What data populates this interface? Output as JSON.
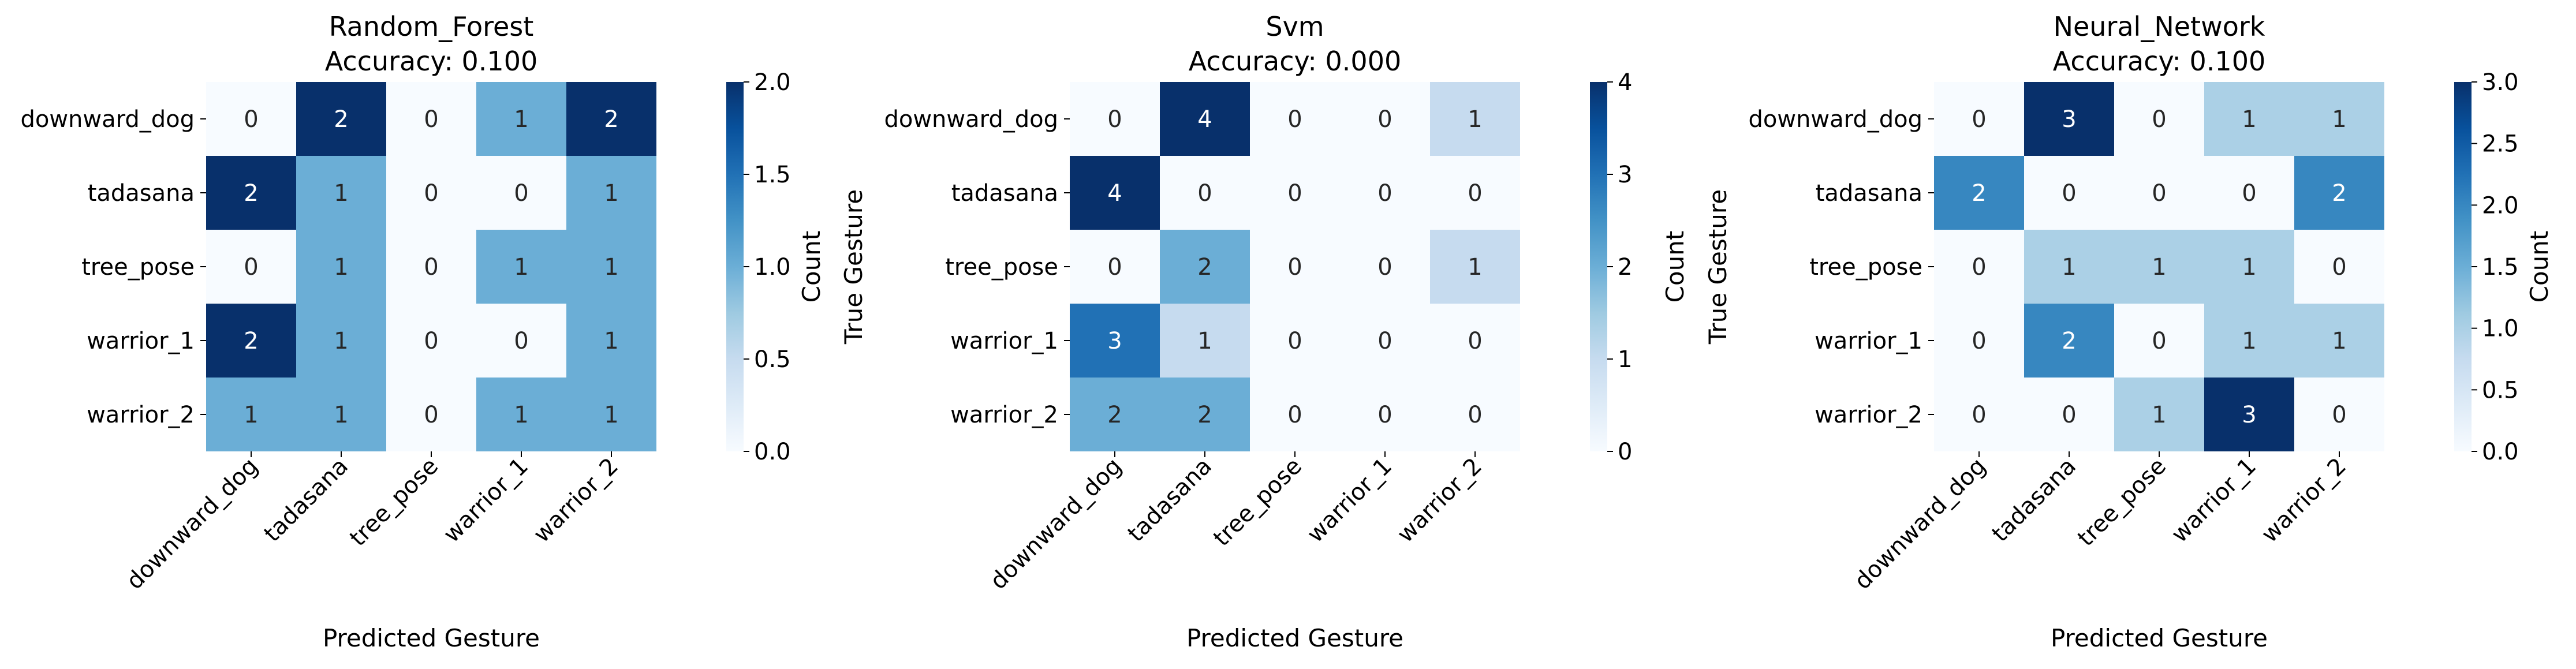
{
  "chart_data": [
    {
      "type": "heatmap",
      "title": "Random_Forest",
      "subtitle": "Accuracy: 0.100",
      "xlabel": "Predicted Gesture",
      "ylabel": "True Gesture",
      "colorbar_label": "Count",
      "rows": [
        "downward_dog",
        "tadasana",
        "tree_pose",
        "warrior_1",
        "warrior_2"
      ],
      "columns": [
        "downward_dog",
        "tadasana",
        "tree_pose",
        "warrior_1",
        "warrior_2"
      ],
      "values": [
        [
          0,
          2,
          0,
          1,
          2
        ],
        [
          2,
          1,
          0,
          0,
          1
        ],
        [
          0,
          1,
          0,
          1,
          1
        ],
        [
          2,
          1,
          0,
          0,
          1
        ],
        [
          1,
          1,
          0,
          1,
          1
        ]
      ],
      "vmin": 0,
      "vmax": 2,
      "colorbar_ticks": [
        "0.0",
        "0.5",
        "1.0",
        "1.5",
        "2.0"
      ],
      "colormap": "Blues"
    },
    {
      "type": "heatmap",
      "title": "Svm",
      "subtitle": "Accuracy: 0.000",
      "xlabel": "Predicted Gesture",
      "ylabel": "True Gesture",
      "colorbar_label": "Count",
      "rows": [
        "downward_dog",
        "tadasana",
        "tree_pose",
        "warrior_1",
        "warrior_2"
      ],
      "columns": [
        "downward_dog",
        "tadasana",
        "tree_pose",
        "warrior_1",
        "warrior_2"
      ],
      "values": [
        [
          0,
          4,
          0,
          0,
          1
        ],
        [
          4,
          0,
          0,
          0,
          0
        ],
        [
          0,
          2,
          0,
          0,
          1
        ],
        [
          3,
          1,
          0,
          0,
          0
        ],
        [
          2,
          2,
          0,
          0,
          0
        ]
      ],
      "vmin": 0,
      "vmax": 4,
      "colorbar_ticks": [
        "0",
        "1",
        "2",
        "3",
        "4"
      ],
      "colormap": "Blues"
    },
    {
      "type": "heatmap",
      "title": "Neural_Network",
      "subtitle": "Accuracy: 0.100",
      "xlabel": "Predicted Gesture",
      "ylabel": "True Gesture",
      "colorbar_label": "Count",
      "rows": [
        "downward_dog",
        "tadasana",
        "tree_pose",
        "warrior_1",
        "warrior_2"
      ],
      "columns": [
        "downward_dog",
        "tadasana",
        "tree_pose",
        "warrior_1",
        "warrior_2"
      ],
      "values": [
        [
          0,
          3,
          0,
          1,
          1
        ],
        [
          2,
          0,
          0,
          0,
          2
        ],
        [
          0,
          1,
          1,
          1,
          0
        ],
        [
          0,
          2,
          0,
          1,
          1
        ],
        [
          0,
          0,
          1,
          3,
          0
        ]
      ],
      "vmin": 0,
      "vmax": 3,
      "colorbar_ticks": [
        "0.0",
        "0.5",
        "1.0",
        "1.5",
        "2.0",
        "2.5",
        "3.0"
      ],
      "colormap": "Blues"
    }
  ]
}
